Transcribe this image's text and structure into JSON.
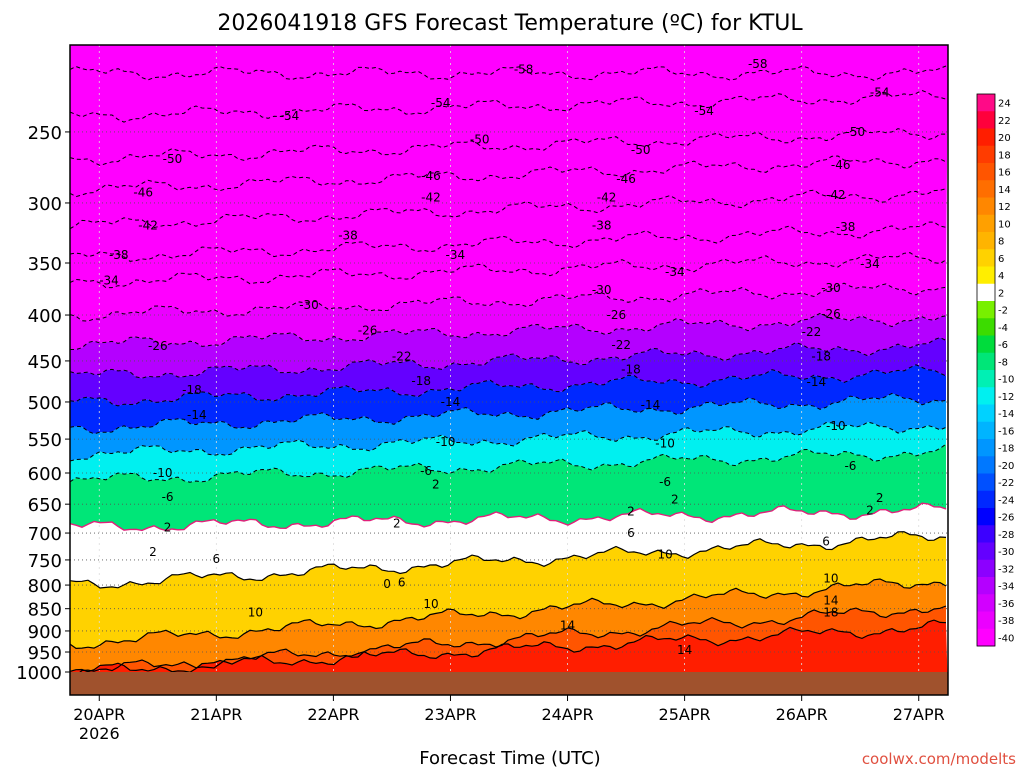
{
  "chart_data": {
    "type": "heatmap",
    "title": "2026041918 GFS Forecast Temperature (ºC) for KTUL",
    "xlabel": "Forecast Time (UTC)",
    "ylabel": "",
    "credit": "coolwx.com/modelts",
    "x_ticks": [
      {
        "label": "20APR",
        "sub": "2026",
        "hours": 6
      },
      {
        "label": "21APR",
        "sub": "",
        "hours": 30
      },
      {
        "label": "22APR",
        "sub": "",
        "hours": 54
      },
      {
        "label": "23APR",
        "sub": "",
        "hours": 78
      },
      {
        "label": "24APR",
        "sub": "",
        "hours": 102
      },
      {
        "label": "25APR",
        "sub": "",
        "hours": 126
      },
      {
        "label": "26APR",
        "sub": "",
        "hours": 150
      },
      {
        "label": "27APR",
        "sub": "",
        "hours": 174
      }
    ],
    "xlim_hours": [
      0,
      180
    ],
    "y_ticks": [
      250,
      300,
      350,
      400,
      450,
      500,
      550,
      600,
      650,
      700,
      750,
      800,
      850,
      900,
      950,
      1000
    ],
    "ylim_hpa": [
      200,
      1000
    ],
    "y_scale": "log",
    "ground_color": "#a0522d",
    "colorbar_labels": [
      "24",
      "22",
      "20",
      "18",
      "16",
      "14",
      "12",
      "10",
      "8",
      "6",
      "4",
      "2",
      "-2",
      "-4",
      "-6",
      "-8",
      "-10",
      "-12",
      "-14",
      "-16",
      "-18",
      "-20",
      "-22",
      "-24",
      "-26",
      "-28",
      "-30",
      "-32",
      "-34",
      "-36",
      "-38",
      "-40"
    ],
    "colorbar_colors": [
      "#ff0a87",
      "#ff003c",
      "#ff1e00",
      "#ff3c00",
      "#ff5500",
      "#ff6e00",
      "#ff8700",
      "#ffa000",
      "#ffb400",
      "#ffd200",
      "#ffee00",
      "#ffffff",
      "#78f000",
      "#3cdc00",
      "#00dc3c",
      "#00e678",
      "#00f0b4",
      "#00f0f0",
      "#00d2ff",
      "#00b4ff",
      "#0096ff",
      "#0078ff",
      "#0050ff",
      "#0028ff",
      "#0000ff",
      "#3c00ff",
      "#6400ff",
      "#8c00ff",
      "#b400ff",
      "#d200ff",
      "#eb00ff",
      "#ff00ff"
    ],
    "isotherms": [
      {
        "temp": -58,
        "p_start": 215,
        "p_end": 215
      },
      {
        "temp": -54,
        "p_start": 240,
        "p_end": 228
      },
      {
        "temp": -50,
        "p_start": 268,
        "p_end": 250
      },
      {
        "temp": -46,
        "p_start": 290,
        "p_end": 268
      },
      {
        "temp": -42,
        "p_start": 318,
        "p_end": 292
      },
      {
        "temp": -38,
        "p_start": 345,
        "p_end": 320
      },
      {
        "temp": -34,
        "p_start": 368,
        "p_end": 345
      },
      {
        "temp": -30,
        "p_start": 400,
        "p_end": 372
      },
      {
        "temp": -26,
        "p_start": 432,
        "p_end": 402
      },
      {
        "temp": -22,
        "p_start": 468,
        "p_end": 432
      },
      {
        "temp": -18,
        "p_start": 500,
        "p_end": 462
      },
      {
        "temp": -14,
        "p_start": 535,
        "p_end": 495
      },
      {
        "temp": -10,
        "p_start": 572,
        "p_end": 530
      },
      {
        "temp": -6,
        "p_start": 612,
        "p_end": 568
      },
      {
        "temp": 2,
        "p_start": 690,
        "p_end": 660
      },
      {
        "temp": 6,
        "p_start": 800,
        "p_end": 705
      },
      {
        "temp": 10,
        "p_start": 930,
        "p_end": 790
      },
      {
        "temp": 14,
        "p_start": 1000,
        "p_end": 845
      },
      {
        "temp": 18,
        "p_start": 1000,
        "p_end": 890
      }
    ],
    "isotherm_labels": [
      {
        "text": "-58",
        "hours": 93,
        "p": 213
      },
      {
        "text": "-58",
        "hours": 141,
        "p": 210
      },
      {
        "text": "-54",
        "hours": 45,
        "p": 240
      },
      {
        "text": "-54",
        "hours": 76,
        "p": 232
      },
      {
        "text": "-54",
        "hours": 130,
        "p": 237
      },
      {
        "text": "-54",
        "hours": 166,
        "p": 226
      },
      {
        "text": "-50",
        "hours": 21,
        "p": 268
      },
      {
        "text": "-50",
        "hours": 84,
        "p": 255
      },
      {
        "text": "-50",
        "hours": 117,
        "p": 262
      },
      {
        "text": "-50",
        "hours": 161,
        "p": 250
      },
      {
        "text": "-46",
        "hours": 15,
        "p": 292
      },
      {
        "text": "-46",
        "hours": 74,
        "p": 280
      },
      {
        "text": "-46",
        "hours": 114,
        "p": 282
      },
      {
        "text": "-46",
        "hours": 158,
        "p": 272
      },
      {
        "text": "-42",
        "hours": 16,
        "p": 318
      },
      {
        "text": "-42",
        "hours": 74,
        "p": 296
      },
      {
        "text": "-42",
        "hours": 110,
        "p": 296
      },
      {
        "text": "-42",
        "hours": 157,
        "p": 294
      },
      {
        "text": "-38",
        "hours": 10,
        "p": 343
      },
      {
        "text": "-38",
        "hours": 57,
        "p": 326
      },
      {
        "text": "-38",
        "hours": 109,
        "p": 318
      },
      {
        "text": "-38",
        "hours": 159,
        "p": 319
      },
      {
        "text": "-34",
        "hours": 8,
        "p": 366
      },
      {
        "text": "-34",
        "hours": 79,
        "p": 343
      },
      {
        "text": "-34",
        "hours": 124,
        "p": 358
      },
      {
        "text": "-34",
        "hours": 164,
        "p": 351
      },
      {
        "text": "-30",
        "hours": 49,
        "p": 390
      },
      {
        "text": "-30",
        "hours": 109,
        "p": 375
      },
      {
        "text": "-30",
        "hours": 156,
        "p": 373
      },
      {
        "text": "-26",
        "hours": 18,
        "p": 433
      },
      {
        "text": "-26",
        "hours": 61,
        "p": 416
      },
      {
        "text": "-26",
        "hours": 112,
        "p": 400
      },
      {
        "text": "-26",
        "hours": 156,
        "p": 399
      },
      {
        "text": "-22",
        "hours": 68,
        "p": 445
      },
      {
        "text": "-22",
        "hours": 113,
        "p": 432
      },
      {
        "text": "-22",
        "hours": 152,
        "p": 418
      },
      {
        "text": "-18",
        "hours": 25,
        "p": 485
      },
      {
        "text": "-18",
        "hours": 72,
        "p": 474
      },
      {
        "text": "-18",
        "hours": 115,
        "p": 460
      },
      {
        "text": "-18",
        "hours": 154,
        "p": 445
      },
      {
        "text": "-14",
        "hours": 26,
        "p": 517
      },
      {
        "text": "-14",
        "hours": 78,
        "p": 500
      },
      {
        "text": "-14",
        "hours": 119,
        "p": 504
      },
      {
        "text": "-14",
        "hours": 153,
        "p": 475
      },
      {
        "text": "-10",
        "hours": 19,
        "p": 600
      },
      {
        "text": "-10",
        "hours": 77,
        "p": 554
      },
      {
        "text": "-10",
        "hours": 122,
        "p": 556
      },
      {
        "text": "-10",
        "hours": 157,
        "p": 532
      },
      {
        "text": "-6",
        "hours": 20,
        "p": 638
      },
      {
        "text": "-6",
        "hours": 73,
        "p": 597
      },
      {
        "text": "-6",
        "hours": 122,
        "p": 614
      },
      {
        "text": "-6",
        "hours": 160,
        "p": 589
      },
      {
        "text": "2",
        "hours": 20,
        "p": 690
      },
      {
        "text": "2",
        "hours": 75,
        "p": 618
      },
      {
        "text": "2",
        "hours": 124,
        "p": 642
      },
      {
        "text": "2",
        "hours": 166,
        "p": 640
      },
      {
        "text": "2",
        "hours": 17,
        "p": 735
      },
      {
        "text": "2",
        "hours": 67,
        "p": 683
      },
      {
        "text": "2",
        "hours": 115,
        "p": 662
      },
      {
        "text": "2",
        "hours": 164,
        "p": 661
      },
      {
        "text": "6",
        "hours": 30,
        "p": 748
      },
      {
        "text": "6",
        "hours": 68,
        "p": 795
      },
      {
        "text": "6",
        "hours": 115,
        "p": 700
      },
      {
        "text": "6",
        "hours": 155,
        "p": 715
      },
      {
        "text": "0",
        "hours": 65,
        "p": 798
      },
      {
        "text": "10",
        "hours": 38,
        "p": 858
      },
      {
        "text": "10",
        "hours": 74,
        "p": 840
      },
      {
        "text": "10",
        "hours": 122,
        "p": 740
      },
      {
        "text": "10",
        "hours": 156,
        "p": 787
      },
      {
        "text": "14",
        "hours": 102,
        "p": 888
      },
      {
        "text": "14",
        "hours": 126,
        "p": 945
      },
      {
        "text": "14",
        "hours": 156,
        "p": 832
      },
      {
        "text": "18",
        "hours": 156,
        "p": 858
      }
    ]
  }
}
